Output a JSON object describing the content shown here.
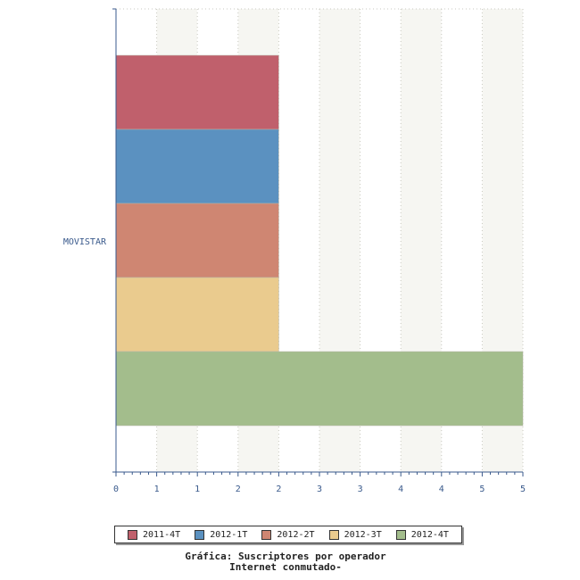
{
  "chart_data": {
    "type": "bar",
    "orientation": "horizontal",
    "categories": [
      "MOVISTAR"
    ],
    "series": [
      {
        "name": "2011-4T",
        "values": [
          2
        ],
        "color": "#c0606c"
      },
      {
        "name": "2012-1T",
        "values": [
          2
        ],
        "color": "#5b91c0"
      },
      {
        "name": "2012-2T",
        "values": [
          2
        ],
        "color": "#cf8672"
      },
      {
        "name": "2012-3T",
        "values": [
          2
        ],
        "color": "#eacb8e"
      },
      {
        "name": "2012-4T",
        "values": [
          5
        ],
        "color": "#a3bd8c"
      }
    ],
    "xlim": [
      0,
      5
    ],
    "x_tick_labels": [
      "0",
      "1",
      "1",
      "2",
      "2",
      "3",
      "3",
      "4",
      "4",
      "5",
      "5"
    ],
    "grid": true,
    "legend_position": "bottom",
    "caption": [
      "Gráfica: Suscriptores por operador",
      "Internet conmutado-"
    ]
  }
}
